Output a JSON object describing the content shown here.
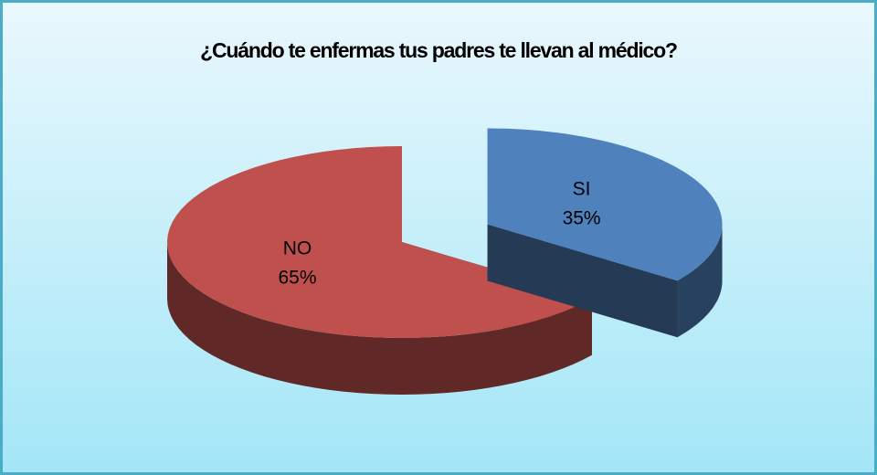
{
  "chart_data": {
    "type": "pie",
    "title": "¿Cuándo te enfermas tus padres te llevan al médico?",
    "categories": [
      "SI",
      "NO"
    ],
    "values": [
      35,
      65
    ],
    "value_labels": [
      "35%",
      "65%"
    ],
    "colors": [
      "#4f81bd",
      "#c0504d"
    ]
  }
}
